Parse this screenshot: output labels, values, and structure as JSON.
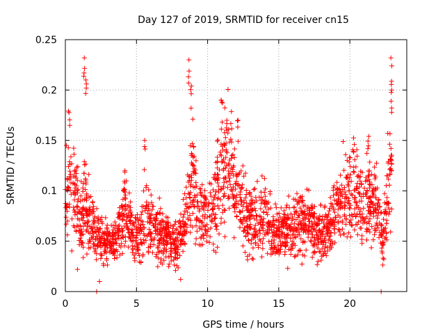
{
  "chart_data": {
    "type": "scatter",
    "title": "Day 127 of 2019, SRMTID for receiver cn15",
    "xlabel": "GPS time / hours",
    "ylabel": "SRMTID / TECUs",
    "xlim": [
      0,
      24
    ],
    "ylim": [
      0,
      0.25
    ],
    "xticks": [
      0,
      5,
      10,
      15,
      20
    ],
    "xtick_labels": [
      "0",
      "5",
      "10",
      "15",
      "20"
    ],
    "yticks": [
      0,
      0.05,
      0.1,
      0.15,
      0.2,
      0.25
    ],
    "ytick_labels": [
      "0",
      "0.05",
      "0.1",
      "0.15",
      "0.2",
      "0.25"
    ],
    "grid": true,
    "color": "#ff0000",
    "marker": "+",
    "series": [
      {
        "name": "SRMTID",
        "profile": [
          [
            0.0,
            0.09
          ],
          [
            0.3,
            0.11
          ],
          [
            0.6,
            0.1
          ],
          [
            1.0,
            0.07
          ],
          [
            1.4,
            0.09
          ],
          [
            1.8,
            0.07
          ],
          [
            2.2,
            0.055
          ],
          [
            2.8,
            0.05
          ],
          [
            3.3,
            0.045
          ],
          [
            3.8,
            0.06
          ],
          [
            4.3,
            0.08
          ],
          [
            4.8,
            0.055
          ],
          [
            5.3,
            0.06
          ],
          [
            5.8,
            0.075
          ],
          [
            6.3,
            0.06
          ],
          [
            6.8,
            0.055
          ],
          [
            7.3,
            0.05
          ],
          [
            7.8,
            0.045
          ],
          [
            8.3,
            0.06
          ],
          [
            8.7,
            0.1
          ],
          [
            9.0,
            0.11
          ],
          [
            9.4,
            0.075
          ],
          [
            10.0,
            0.075
          ],
          [
            10.5,
            0.09
          ],
          [
            11.0,
            0.12
          ],
          [
            11.4,
            0.13
          ],
          [
            12.0,
            0.1
          ],
          [
            12.5,
            0.08
          ],
          [
            13.0,
            0.07
          ],
          [
            13.5,
            0.07
          ],
          [
            14.0,
            0.08
          ],
          [
            14.5,
            0.06
          ],
          [
            15.0,
            0.055
          ],
          [
            15.5,
            0.06
          ],
          [
            16.0,
            0.065
          ],
          [
            16.5,
            0.07
          ],
          [
            17.0,
            0.07
          ],
          [
            17.5,
            0.06
          ],
          [
            18.0,
            0.06
          ],
          [
            18.5,
            0.065
          ],
          [
            19.0,
            0.075
          ],
          [
            19.5,
            0.09
          ],
          [
            20.0,
            0.1
          ],
          [
            20.5,
            0.095
          ],
          [
            21.0,
            0.085
          ],
          [
            21.5,
            0.09
          ],
          [
            22.0,
            0.08
          ],
          [
            22.3,
            0.045
          ],
          [
            22.6,
            0.09
          ],
          [
            22.9,
            0.14
          ]
        ],
        "spikes": [
          [
            0.25,
            0.179
          ],
          [
            1.35,
            0.232
          ],
          [
            1.45,
            0.21
          ],
          [
            8.7,
            0.23
          ],
          [
            8.8,
            0.204
          ],
          [
            11.0,
            0.19
          ],
          [
            11.3,
            0.17
          ],
          [
            22.9,
            0.232
          ],
          [
            22.95,
            0.2
          ],
          [
            21.3,
            0.154
          ],
          [
            5.6,
            0.15
          ],
          [
            20.3,
            0.146
          ],
          [
            12.1,
            0.17
          ],
          [
            4.2,
            0.12
          ]
        ],
        "lows": [
          [
            2.2,
            0.0
          ],
          [
            22.2,
            0.0
          ],
          [
            2.4,
            0.01
          ],
          [
            8.1,
            0.012
          ],
          [
            0.85,
            0.022
          ]
        ]
      }
    ]
  }
}
